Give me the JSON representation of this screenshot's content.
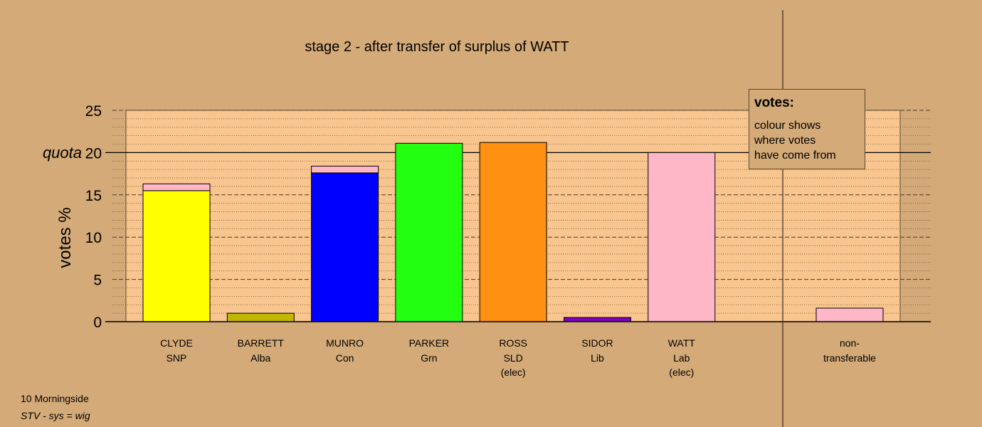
{
  "chart_data": {
    "type": "bar",
    "title": "stage 2 - after transfer of surplus of WATT",
    "ylabel": "votes %",
    "ylim": [
      0,
      25
    ],
    "yticks": [
      {
        "value": 0,
        "label": "0"
      },
      {
        "value": 5,
        "label": "5"
      },
      {
        "value": 10,
        "label": "10"
      },
      {
        "value": 15,
        "label": "15"
      },
      {
        "value": 20,
        "label": "20"
      },
      {
        "value": 25,
        "label": "25"
      }
    ],
    "quota": {
      "value": 20,
      "label": "quota"
    },
    "stacked": true,
    "candidates": [
      {
        "name": "CLYDE",
        "party": "SNP",
        "status": "",
        "segments": [
          {
            "value": 15.5,
            "color": "#ffff00"
          },
          {
            "value": 0.8,
            "color": "#ffb6c6"
          }
        ]
      },
      {
        "name": "BARRETT",
        "party": "Alba",
        "status": "",
        "segments": [
          {
            "value": 1.0,
            "color": "#c0b800"
          }
        ]
      },
      {
        "name": "MUNRO",
        "party": "Con",
        "status": "",
        "segments": [
          {
            "value": 17.6,
            "color": "#0000ff"
          },
          {
            "value": 0.8,
            "color": "#ffb6c6"
          }
        ]
      },
      {
        "name": "PARKER",
        "party": "Grn",
        "status": "",
        "segments": [
          {
            "value": 21.1,
            "color": "#22ff11"
          }
        ]
      },
      {
        "name": "ROSS",
        "party": "SLD",
        "status": "(elec)",
        "segments": [
          {
            "value": 21.2,
            "color": "#ff9010"
          }
        ]
      },
      {
        "name": "SIDOR",
        "party": "Lib",
        "status": "",
        "segments": [
          {
            "value": 0.5,
            "color": "#8000c0"
          }
        ]
      },
      {
        "name": "WATT",
        "party": "Lab",
        "status": "(elec)",
        "segments": [
          {
            "value": 20.0,
            "color": "#ffb6c6"
          }
        ]
      }
    ],
    "non_transferable": {
      "label_line1": "non-",
      "label_line2": "transferable",
      "value": 1.6,
      "color": "#ffb6c6"
    },
    "grid": true
  },
  "legend": {
    "title": "votes:",
    "lines": [
      "colour shows",
      "where votes",
      "have come from"
    ]
  },
  "footer": {
    "ward": "10 Morningside",
    "system": "STV - sys = wig"
  },
  "colors": {
    "background": "#d4aa78",
    "plot_background": "#f9c58f"
  }
}
